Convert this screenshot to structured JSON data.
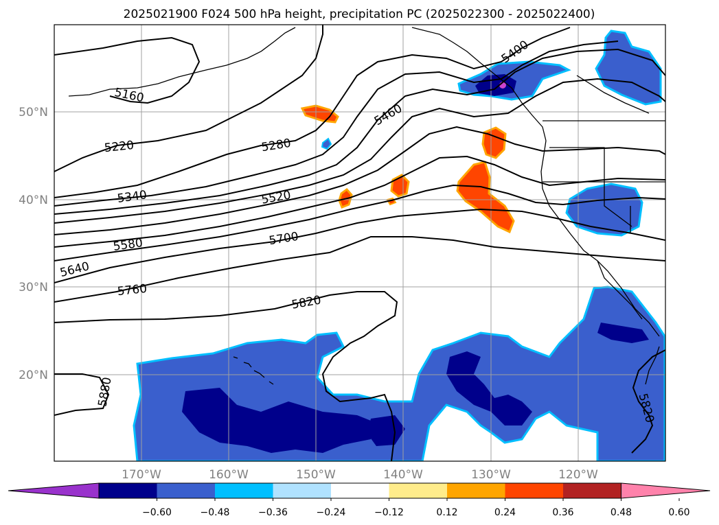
{
  "title": "2025021900 F024 500 hPa height, precipitation PC (2025022300 - 2025022400)",
  "map": {
    "lat_labels": [
      "50°N",
      "40°N",
      "30°N",
      "20°N"
    ],
    "lon_labels": [
      "170°W",
      "160°W",
      "150°W",
      "140°W",
      "130°W",
      "120°W"
    ],
    "contour_labels": [
      "5160",
      "5220",
      "5280",
      "5340",
      "5400",
      "5460",
      "5520",
      "5580",
      "5640",
      "5700",
      "5760",
      "5820",
      "5880",
      "5820"
    ],
    "field_colors": {
      "deep_negative": "#00008b",
      "negative": "#3a5fcd",
      "light_negative": "#00bfff",
      "positive": "#ff4500",
      "positive_edge": "#ffa500",
      "positive_tint": "#ffe98a",
      "extreme_negative": "#cc44cc"
    }
  },
  "colorbar": {
    "tick_labels": [
      "−0.60",
      "−0.48",
      "−0.36",
      "−0.24",
      "−0.12",
      "0.12",
      "0.24",
      "0.36",
      "0.48",
      "0.60"
    ],
    "colors": [
      "#9932cc",
      "#00008b",
      "#3a5fcd",
      "#00bfff",
      "#b0e2ff",
      "#ffffff",
      "#ffec8b",
      "#ffa500",
      "#ff4500",
      "#b22222",
      "#ff82ab"
    ]
  }
}
